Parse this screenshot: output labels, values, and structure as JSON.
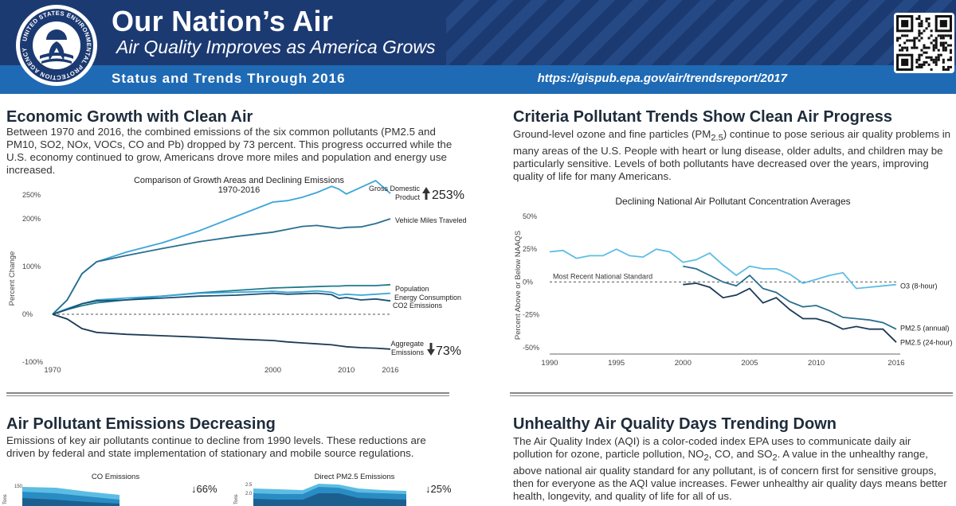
{
  "header": {
    "title": "Our Nation’s Air",
    "subtitle": "Air Quality Improves as America Grows",
    "status": "Status and Trends Through 2016",
    "url": "https://gispub.epa.gov/air/trendsreport/2017",
    "seal_text": "UNITED STATES ENVIRONMENTAL PROTECTION AGENCY",
    "colors": {
      "navy": "#1c3a72",
      "blue": "#1f6ab4"
    }
  },
  "sections": {
    "econ": {
      "heading": "Economic Growth with Clean Air",
      "text": "Between 1970 and 2016, the combined emissions of the six common pollutants (PM2.5 and PM10, SO2, NOx, VOCs, CO and Pb) dropped by 73 percent. This progress occurred while the U.S. economy continued to grow, Americans drove more miles and population and energy use increased."
    },
    "criteria": {
      "heading": "Criteria Pollutant Trends Show Clean Air Progress",
      "text_html": "Ground-level ozone and fine particles (PM<sub>2.5</sub>) continue to pose serious air quality problems in many areas of the U.S. People with heart or lung disease, older adults, and children may be particularly sensitive. Levels of both pollutants have decreased over the years, improving quality of life for many Americans."
    },
    "emissions": {
      "heading": "Air Pollutant Emissions Decreasing",
      "text": "Emissions of key air pollutants continue to decline from 1990 levels. These reductions are driven by federal and state implementation of stationary and mobile source regulations."
    },
    "aqi": {
      "heading": "Unhealthy Air Quality Days Trending Down",
      "text_html": "The Air Quality Index (AQI) is a color-coded index EPA uses to communicate daily air pollution for ozone, particle pollution, NO<sub>2</sub>, CO, and SO<sub>2</sub>. A value in the unhealthy range, above national air quality standard for any pollutant, is of concern first for sensitive groups, then for everyone as the AQI value increases. Fewer unhealthy air quality days means better health, longevity, and quality of life for all of us."
    }
  },
  "chart_data": [
    {
      "type": "line",
      "title": "Comparison of Growth Areas and Declining Emissions",
      "subtitle": "1970-2016",
      "ylabel": "Percent Change",
      "x_ticks": [
        "1970",
        "2000",
        "2010",
        "2016"
      ],
      "y_ticks": [
        "250%",
        "200%",
        "100%",
        "0%",
        "-100%"
      ],
      "xlim": [
        1970,
        2016
      ],
      "ylim": [
        -100,
        250
      ],
      "x": [
        1970,
        1972,
        1974,
        1976,
        1980,
        1985,
        1990,
        1995,
        2000,
        2002,
        2004,
        2006,
        2008,
        2009,
        2010,
        2012,
        2014,
        2016
      ],
      "series": [
        {
          "name": "Gross Domestic Product",
          "color": "#3aa6d8",
          "values": [
            0,
            30,
            85,
            110,
            130,
            150,
            175,
            205,
            235,
            238,
            245,
            255,
            268,
            262,
            252,
            266,
            280,
            253
          ]
        },
        {
          "name": "Vehicle Miles Traveled",
          "color": "#2a6f8f",
          "values": [
            0,
            30,
            85,
            110,
            123,
            138,
            152,
            163,
            172,
            178,
            184,
            186,
            182,
            180,
            182,
            183,
            190,
            200
          ]
        },
        {
          "name": "Population",
          "color": "#1f7a8c",
          "values": [
            0,
            10,
            18,
            24,
            30,
            38,
            45,
            50,
            55,
            56,
            57,
            58,
            59,
            59,
            60,
            60,
            60,
            62
          ]
        },
        {
          "name": "Energy Consumption",
          "color": "#3aa6d8",
          "values": [
            0,
            12,
            22,
            30,
            34,
            38,
            44,
            46,
            48,
            46,
            47,
            49,
            46,
            40,
            42,
            40,
            42,
            44
          ]
        },
        {
          "name": "CO2 Emissions",
          "color": "#1c4f75",
          "values": [
            0,
            10,
            22,
            28,
            30,
            34,
            38,
            40,
            44,
            42,
            43,
            44,
            41,
            33,
            35,
            30,
            32,
            28
          ]
        },
        {
          "name": "Aggregate Emissions",
          "color": "#1c3a55",
          "values": [
            0,
            -10,
            -30,
            -38,
            -42,
            -45,
            -48,
            -52,
            -55,
            -58,
            -60,
            -62,
            -64,
            -66,
            -68,
            -70,
            -71,
            -73
          ]
        }
      ],
      "callouts": [
        {
          "label": "253%",
          "direction": "up"
        },
        {
          "label": "73%",
          "direction": "down"
        }
      ],
      "legend_labels": {
        "gdp_line1": "Gross Domestic",
        "gdp_line2": "Product",
        "agg_line1": "Aggregate",
        "agg_line2": "Emissions"
      }
    },
    {
      "type": "line",
      "title": "Declining National Air Pollutant Concentration Averages",
      "ylabel": "Percent Above or Below NAAQS",
      "reference_line": "Most Recent National Standard",
      "x_ticks": [
        "1990",
        "1995",
        "2000",
        "2005",
        "2010",
        "2016"
      ],
      "y_ticks": [
        "50%",
        "25%",
        "0%",
        "-25%",
        "-50%"
      ],
      "xlim": [
        1990,
        2016
      ],
      "ylim": [
        -55,
        50
      ],
      "series": [
        {
          "name": "O3 (8-hour)",
          "color": "#5cbde3",
          "x": [
            1990,
            1991,
            1992,
            1993,
            1994,
            1995,
            1996,
            1997,
            1998,
            1999,
            2000,
            2001,
            2002,
            2003,
            2004,
            2005,
            2006,
            2007,
            2008,
            2009,
            2010,
            2011,
            2012,
            2013,
            2014,
            2015,
            2016
          ],
          "values": [
            23,
            24,
            18,
            20,
            20,
            25,
            20,
            19,
            25,
            23,
            15,
            17,
            22,
            13,
            5,
            12,
            10,
            10,
            6,
            -1,
            2,
            5,
            7,
            -5,
            -4,
            -3,
            -2
          ]
        },
        {
          "name": "PM2.5 (annual)",
          "color": "#2a6f8f",
          "x": [
            2000,
            2001,
            2002,
            2003,
            2004,
            2005,
            2006,
            2007,
            2008,
            2009,
            2010,
            2011,
            2012,
            2013,
            2014,
            2015,
            2016
          ],
          "values": [
            12,
            10,
            5,
            0,
            -3,
            5,
            -5,
            -8,
            -15,
            -19,
            -18,
            -22,
            -27,
            -28,
            -29,
            -31,
            -36
          ]
        },
        {
          "name": "PM2.5 (24-hour)",
          "color": "#1c3a55",
          "x": [
            2000,
            2001,
            2002,
            2003,
            2004,
            2005,
            2006,
            2007,
            2008,
            2009,
            2010,
            2011,
            2012,
            2013,
            2014,
            2015,
            2016
          ],
          "values": [
            -2,
            -1,
            -4,
            -12,
            -10,
            -5,
            -16,
            -12,
            -21,
            -28,
            -28,
            -31,
            -36,
            -34,
            -36,
            -36,
            -46
          ]
        }
      ],
      "legend_labels": {
        "o3": "O3 (8-hour)",
        "pm_annual": "PM2.5 (annual)",
        "pm_24": "PM2.5 (24-hour)"
      }
    },
    {
      "type": "area",
      "title": "CO Emissions",
      "change_label": "66%",
      "direction": "down",
      "y_ticks": [
        "150"
      ],
      "ylabel": "Tons"
    },
    {
      "type": "area",
      "title": "Direct PM2.5 Emissions",
      "change_label": "25%",
      "direction": "down",
      "y_ticks": [
        "2.5",
        "2.0"
      ],
      "ylabel": "Tons"
    }
  ]
}
